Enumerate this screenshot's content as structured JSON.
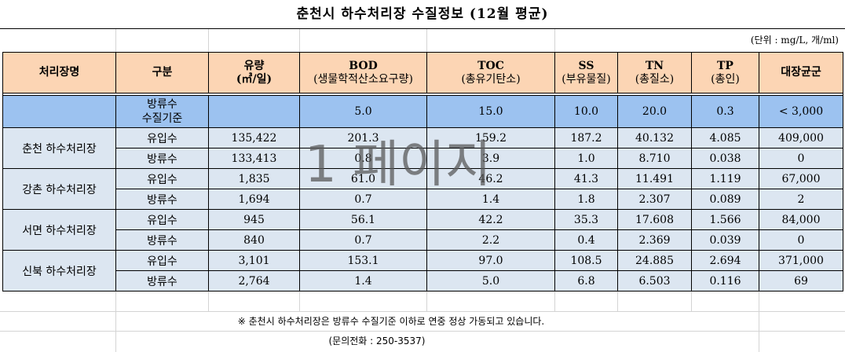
{
  "title": "춘천시 하수처리장 수질정보 (12월 평균)",
  "unit_note": "(단위 : mg/L, 개/ml)",
  "headers": {
    "plant": "처리장명",
    "category": "구분",
    "flow": {
      "main": "유량",
      "sub": "(㎥/일)"
    },
    "bod": {
      "main": "BOD",
      "sub": "(생물학적산소요구량)"
    },
    "toc": {
      "main": "TOC",
      "sub": "(총유기탄소)"
    },
    "ss": {
      "main": "SS",
      "sub": "(부유물질)"
    },
    "tn": {
      "main": "TN",
      "sub": "(총질소)"
    },
    "tp": {
      "main": "TP",
      "sub": "(총인)"
    },
    "coliform": "대장균군"
  },
  "standard": {
    "label_line1": "방류수",
    "label_line2": "수질기준",
    "flow": "",
    "bod": "5.0",
    "toc": "15.0",
    "ss": "10.0",
    "tn": "20.0",
    "tp": "0.3",
    "coliform": "< 3,000"
  },
  "plants": [
    {
      "name": "춘천 하수처리장",
      "rows": [
        {
          "category": "유입수",
          "flow": "135,422",
          "bod": "201.3",
          "toc": "159.2",
          "ss": "187.2",
          "tn": "40.132",
          "tp": "4.085",
          "coliform": "409,000"
        },
        {
          "category": "방류수",
          "flow": "133,413",
          "bod": "0.8",
          "toc": "3.9",
          "ss": "1.0",
          "tn": "8.710",
          "tp": "0.038",
          "coliform": "0"
        }
      ]
    },
    {
      "name": "강촌 하수처리장",
      "rows": [
        {
          "category": "유입수",
          "flow": "1,835",
          "bod": "61.0",
          "toc": "46.2",
          "ss": "41.3",
          "tn": "11.491",
          "tp": "1.119",
          "coliform": "67,000"
        },
        {
          "category": "방류수",
          "flow": "1,694",
          "bod": "0.7",
          "toc": "1.4",
          "ss": "1.8",
          "tn": "2.307",
          "tp": "0.089",
          "coliform": "2"
        }
      ]
    },
    {
      "name": "서면 하수처리장",
      "rows": [
        {
          "category": "유입수",
          "flow": "945",
          "bod": "56.1",
          "toc": "42.2",
          "ss": "35.3",
          "tn": "17.608",
          "tp": "1.566",
          "coliform": "84,000"
        },
        {
          "category": "방류수",
          "flow": "840",
          "bod": "0.7",
          "toc": "2.2",
          "ss": "0.4",
          "tn": "2.369",
          "tp": "0.039",
          "coliform": "0"
        }
      ]
    },
    {
      "name": "신북 하수처리장",
      "rows": [
        {
          "category": "유입수",
          "flow": "3,101",
          "bod": "153.1",
          "toc": "97.0",
          "ss": "108.5",
          "tn": "24.885",
          "tp": "2.694",
          "coliform": "371,000"
        },
        {
          "category": "방류수",
          "flow": "2,764",
          "bod": "1.4",
          "toc": "5.0",
          "ss": "6.8",
          "tn": "6.503",
          "tp": "0.116",
          "coliform": "69"
        }
      ]
    }
  ],
  "watermark": "1 페이지",
  "footer_note": "※ 춘천시 하수처리장은 방류수 수질기준 이하로 연중 정상 가동되고 있습니다.",
  "contact": "(문의전화 : 250-3537)",
  "colors": {
    "header_bg": "#fcd5b4",
    "standard_bg": "#9cc2f0",
    "data_bg": "#dce6f1"
  }
}
